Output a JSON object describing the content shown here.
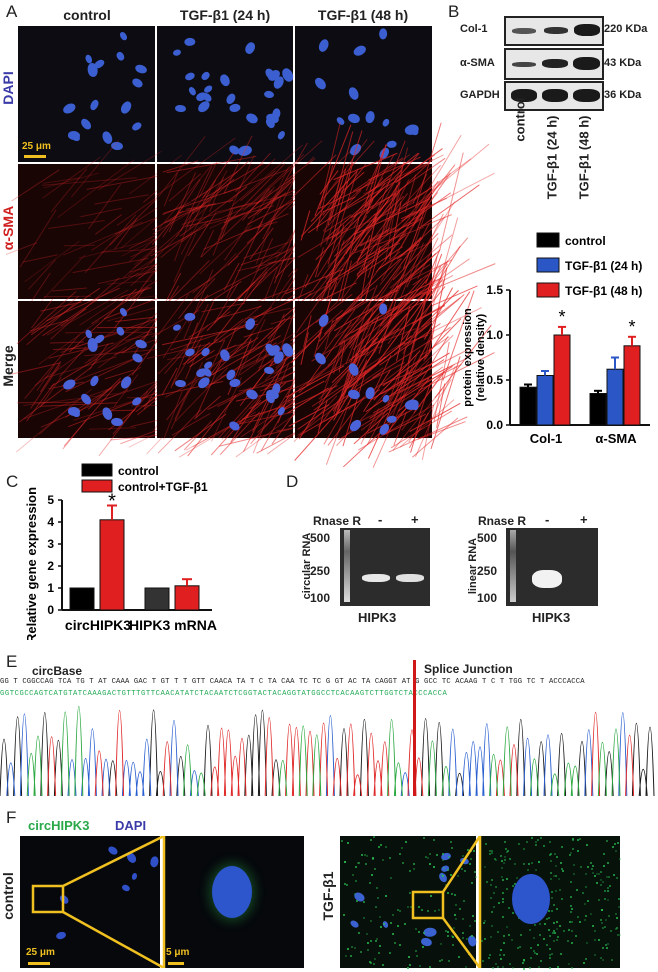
{
  "panels": {
    "A": "A",
    "B": "B",
    "C": "C",
    "D": "D",
    "E": "E",
    "F": "F"
  },
  "panelA": {
    "columns": [
      "control",
      "TGF-β1 (24 h)",
      "TGF-β1 (48 h)"
    ],
    "rows": [
      "DAPI",
      "α-SMA",
      "Merge"
    ],
    "scalebar": "25 μm"
  },
  "panelB": {
    "blot_rows": [
      "Col-1",
      "α-SMA",
      "GAPDH"
    ],
    "sizes": [
      "220 KDa",
      "43 KDa",
      "36 KDa"
    ],
    "lanes": [
      "control",
      "TGF-β1 (24 h)",
      "TGF-β1 (48 h)"
    ]
  },
  "chartB": {
    "type": "bar",
    "categories": [
      "Col-1",
      "α-SMA"
    ],
    "series": [
      {
        "name": "control",
        "values": [
          0.42,
          0.35
        ],
        "errors": [
          0.03,
          0.03
        ],
        "color": "#000000"
      },
      {
        "name": "TGF-β1 (24 h)",
        "values": [
          0.55,
          0.62
        ],
        "errors": [
          0.05,
          0.13
        ],
        "color": "#2a56c6"
      },
      {
        "name": "TGF-β1 (48 h)",
        "values": [
          1.0,
          0.88
        ],
        "errors": [
          0.09,
          0.1
        ],
        "color": "#e02020"
      }
    ],
    "ylabel": "protein expression\n(relative density)",
    "ylabel_line1": "protein expression",
    "ylabel_line2": "(relative density)",
    "ylim": [
      0,
      1.5
    ],
    "yticks": [
      "0.0",
      "0.5",
      "1.0",
      "1.5"
    ],
    "significance": [
      {
        "series": 2,
        "category": 0,
        "label": "*"
      },
      {
        "series": 2,
        "category": 1,
        "label": "*"
      }
    ]
  },
  "chartC": {
    "type": "bar",
    "categories": [
      "circHIPK3",
      "HIPK3 mRNA"
    ],
    "series": [
      {
        "name": "control",
        "values": [
          1.0,
          1.0
        ],
        "errors": [
          0,
          0
        ],
        "color": "#000000"
      },
      {
        "name": "control+TGF-β1",
        "values": [
          4.1,
          1.1
        ],
        "errors": [
          0.65,
          0.3
        ],
        "color": "#e02020"
      }
    ],
    "ylabel": "Relative gene expression",
    "ylim": [
      0,
      5
    ],
    "yticks": [
      "0",
      "1",
      "2",
      "3",
      "4",
      "5"
    ],
    "significance": [
      {
        "series": 1,
        "category": 0,
        "label": "*"
      }
    ]
  },
  "panelD": {
    "left": {
      "ylabel": "circular RNA",
      "treatment": "Rnase R",
      "minus": "-",
      "plus": "+",
      "markers": [
        "500",
        "250",
        "100"
      ],
      "gene": "HIPK3"
    },
    "right": {
      "ylabel": "linear RNA",
      "treatment": "Rnase R",
      "minus": "-",
      "plus": "+",
      "markers": [
        "500",
        "250",
        "100"
      ],
      "gene": "HIPK3"
    }
  },
  "panelE": {
    "left_label": "circBase",
    "right_label": "Splice Junction",
    "seq1": "GG T CGGCCAG TCA TG T AT CAAA GAC T GT T T GTT CAACA TA T C TA CAA TC TC G GT AC TA CAGGT AT G GCC TC ACAAG T C T TGG TC T ACCCACCA",
    "seq2": "GGTCGCCAGTCATGTATCAAAGACTGTTTGTTCAACATATCTACAATCTCGGTACTACAGGTATGGCCTCACAAGTCTTGGTCTACCCACCA"
  },
  "panelF": {
    "title_green": "circHIPK3",
    "title_blue": "DAPI",
    "left_label": "control",
    "right_label": "TGF-β1",
    "scalebar_large": "25 μm",
    "scalebar_small": "5 μm"
  }
}
